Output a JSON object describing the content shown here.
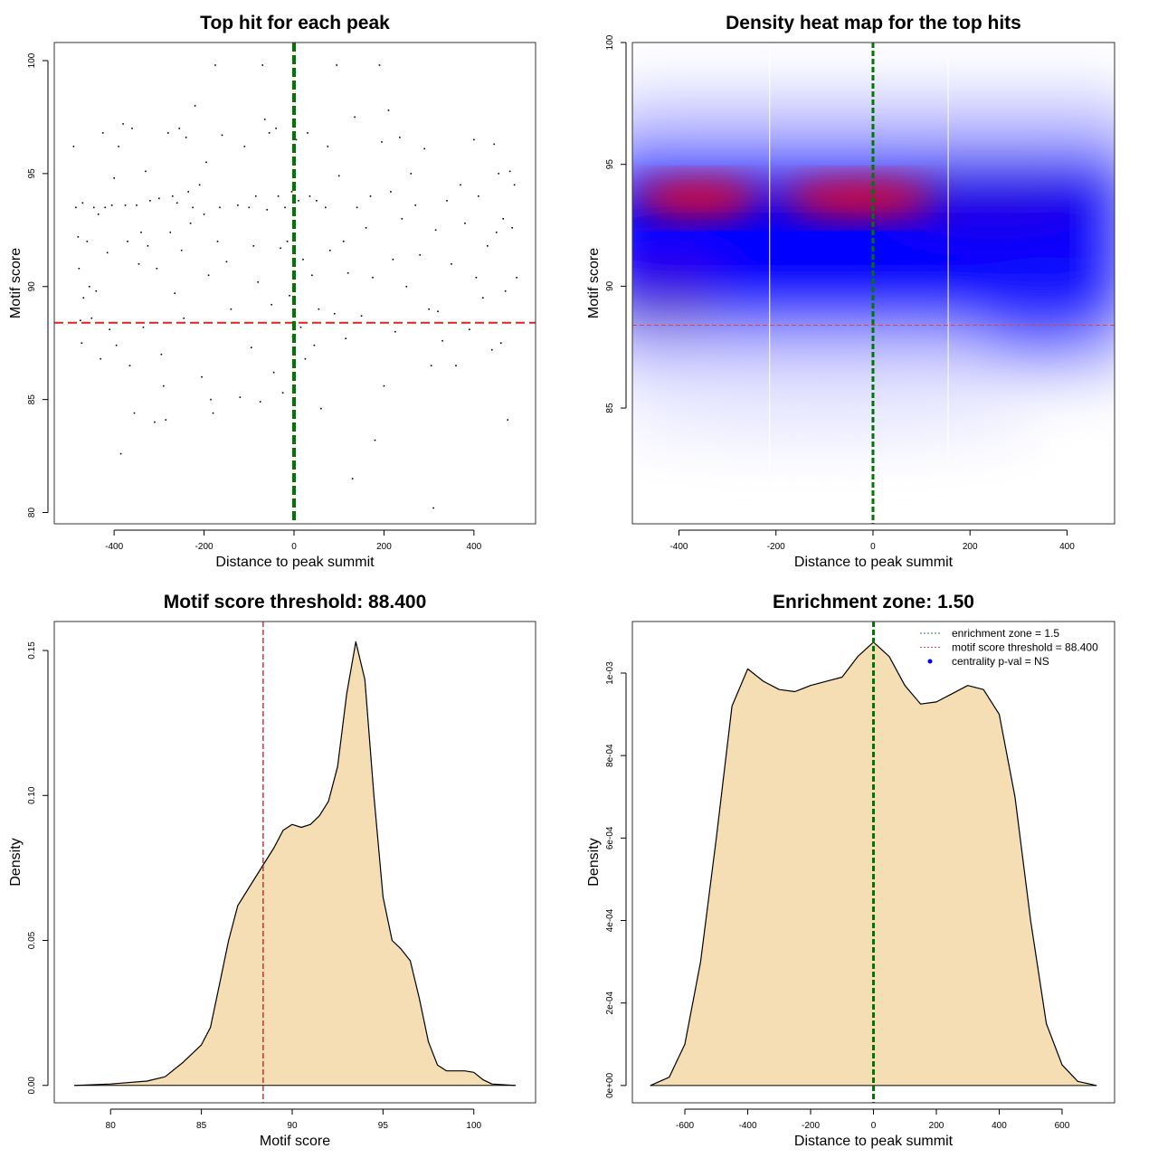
{
  "chart_data": [
    {
      "type": "scatter",
      "title": "Top hit for each peak",
      "xlabel": "Distance to peak summit",
      "ylabel": "Motif score",
      "xlim": [
        -533,
        537
      ],
      "ylim": [
        79.5,
        100.8
      ],
      "xticks": [
        -400,
        -200,
        0,
        200,
        400
      ],
      "yticks": [
        80,
        85,
        90,
        95,
        100
      ],
      "hline": {
        "value": 88.4,
        "color": "#dd2222"
      },
      "vline": {
        "value": 0,
        "color": "#007700"
      },
      "points": [
        [
          -490,
          96.2
        ],
        [
          -485,
          93.5
        ],
        [
          -480,
          92.2
        ],
        [
          -478,
          90.8
        ],
        [
          -475,
          88.5
        ],
        [
          -472,
          87.5
        ],
        [
          -470,
          93.7
        ],
        [
          -468,
          89.5
        ],
        [
          -465,
          88.4
        ],
        [
          -460,
          92
        ],
        [
          -455,
          90
        ],
        [
          -450,
          88.6
        ],
        [
          -445,
          93.5
        ],
        [
          -440,
          89.8
        ],
        [
          -435,
          93.2
        ],
        [
          -430,
          86.8
        ],
        [
          -425,
          96.8
        ],
        [
          -420,
          93.5
        ],
        [
          -415,
          91.5
        ],
        [
          -410,
          88.1
        ],
        [
          -405,
          93.6
        ],
        [
          -400,
          94.8
        ],
        [
          -395,
          87.4
        ],
        [
          -390,
          96.2
        ],
        [
          -385,
          82.6
        ],
        [
          -380,
          97.2
        ],
        [
          -375,
          93.6
        ],
        [
          -370,
          92
        ],
        [
          -365,
          86.5
        ],
        [
          -360,
          97
        ],
        [
          -355,
          84.4
        ],
        [
          -350,
          93.6
        ],
        [
          -345,
          91
        ],
        [
          -340,
          92.4
        ],
        [
          -335,
          88.2
        ],
        [
          -330,
          95.1
        ],
        [
          -325,
          91.8
        ],
        [
          -320,
          93.8
        ],
        [
          -310,
          84
        ],
        [
          -305,
          90.8
        ],
        [
          -300,
          93.9
        ],
        [
          -295,
          87
        ],
        [
          -290,
          85.6
        ],
        [
          -285,
          84.1
        ],
        [
          -280,
          96.8
        ],
        [
          -275,
          92.4
        ],
        [
          -270,
          94
        ],
        [
          -265,
          89.7
        ],
        [
          -260,
          93.7
        ],
        [
          -255,
          97
        ],
        [
          -250,
          91.6
        ],
        [
          -245,
          88.6
        ],
        [
          -240,
          96.6
        ],
        [
          -235,
          94.2
        ],
        [
          -230,
          92.8
        ],
        [
          -225,
          93.5
        ],
        [
          -220,
          98
        ],
        [
          -215,
          88.4
        ],
        [
          -210,
          94.5
        ],
        [
          -205,
          86
        ],
        [
          -200,
          93.2
        ],
        [
          -195,
          95.5
        ],
        [
          -190,
          90.5
        ],
        [
          -185,
          85
        ],
        [
          -180,
          84.4
        ],
        [
          -175,
          99.8
        ],
        [
          -170,
          92
        ],
        [
          -165,
          93.5
        ],
        [
          -160,
          96.7
        ],
        [
          -150,
          91.1
        ],
        [
          -140,
          89
        ],
        [
          -130,
          88.4
        ],
        [
          -125,
          93.6
        ],
        [
          -120,
          85.1
        ],
        [
          -110,
          96.2
        ],
        [
          -100,
          93.5
        ],
        [
          -95,
          87.3
        ],
        [
          -90,
          91.8
        ],
        [
          -85,
          94
        ],
        [
          -80,
          90.2
        ],
        [
          -75,
          84.9
        ],
        [
          -70,
          99.8
        ],
        [
          -65,
          97.4
        ],
        [
          -60,
          93.4
        ],
        [
          -55,
          96.8
        ],
        [
          -50,
          89.2
        ],
        [
          -45,
          86.2
        ],
        [
          -40,
          97
        ],
        [
          -35,
          94
        ],
        [
          -30,
          91.7
        ],
        [
          -25,
          85.3
        ],
        [
          -20,
          93.5
        ],
        [
          -15,
          92
        ],
        [
          -10,
          89.6
        ],
        [
          -5,
          94.2
        ],
        [
          -3,
          87.8
        ],
        [
          5,
          96.5
        ],
        [
          10,
          93.8
        ],
        [
          15,
          88.2
        ],
        [
          20,
          91.2
        ],
        [
          25,
          86.8
        ],
        [
          30,
          96.8
        ],
        [
          35,
          94
        ],
        [
          40,
          90.5
        ],
        [
          45,
          87.4
        ],
        [
          50,
          93.8
        ],
        [
          55,
          89
        ],
        [
          60,
          84.6
        ],
        [
          70,
          93.5
        ],
        [
          75,
          96.2
        ],
        [
          80,
          91.6
        ],
        [
          90,
          88.8
        ],
        [
          95,
          99.8
        ],
        [
          100,
          94.9
        ],
        [
          110,
          92
        ],
        [
          115,
          87.7
        ],
        [
          120,
          90.6
        ],
        [
          130,
          81.5
        ],
        [
          135,
          97.5
        ],
        [
          140,
          93.5
        ],
        [
          150,
          88.7
        ],
        [
          160,
          92.6
        ],
        [
          170,
          94
        ],
        [
          175,
          90.4
        ],
        [
          180,
          83.2
        ],
        [
          190,
          99.8
        ],
        [
          195,
          96.4
        ],
        [
          200,
          85.6
        ],
        [
          210,
          97.8
        ],
        [
          215,
          94.2
        ],
        [
          220,
          91.2
        ],
        [
          225,
          88
        ],
        [
          235,
          96.6
        ],
        [
          240,
          93
        ],
        [
          250,
          90
        ],
        [
          260,
          95
        ],
        [
          265,
          88.4
        ],
        [
          270,
          93.6
        ],
        [
          280,
          91.4
        ],
        [
          290,
          96.1
        ],
        [
          300,
          89
        ],
        [
          305,
          86.5
        ],
        [
          310,
          80.2
        ],
        [
          315,
          92.5
        ],
        [
          320,
          88.9
        ],
        [
          330,
          87.6
        ],
        [
          340,
          93.8
        ],
        [
          350,
          91
        ],
        [
          360,
          86.5
        ],
        [
          370,
          94.5
        ],
        [
          380,
          92.8
        ],
        [
          390,
          88.1
        ],
        [
          400,
          96.5
        ],
        [
          405,
          90.4
        ],
        [
          410,
          94
        ],
        [
          420,
          89.5
        ],
        [
          430,
          91.8
        ],
        [
          440,
          87.2
        ],
        [
          445,
          96.3
        ],
        [
          450,
          92.4
        ],
        [
          455,
          95
        ],
        [
          460,
          87.5
        ],
        [
          465,
          93
        ],
        [
          470,
          89.8
        ],
        [
          475,
          84.1
        ],
        [
          480,
          95.1
        ],
        [
          485,
          92.6
        ],
        [
          490,
          94.5
        ],
        [
          495,
          90.4
        ]
      ]
    },
    {
      "type": "heatmap",
      "title": "Density heat map for the top hits",
      "xlabel": "Distance to peak summit",
      "ylabel": "Motif score",
      "xlim": [
        -496,
        498
      ],
      "ylim": [
        80.25,
        100
      ],
      "xticks": [
        -400,
        -200,
        0,
        200,
        400
      ],
      "yticks": [
        85,
        90,
        95,
        100
      ],
      "hline": {
        "value": 88.4,
        "color": "#dd4444"
      },
      "vline": {
        "value": 0,
        "color": "#007700"
      },
      "white_lines": [
        -213,
        155
      ],
      "hotspots": [
        {
          "x": -360,
          "y": 93.6,
          "level": "high"
        },
        {
          "x": -30,
          "y": 93.6,
          "level": "high"
        }
      ],
      "colors": {
        "low": "#ffffff",
        "mid": "#0000ff",
        "high": "#ff0000"
      }
    },
    {
      "type": "area",
      "title": "Motif score threshold: 88.400",
      "xlabel": "Motif score",
      "ylabel": "Density",
      "xlim": [
        76.9,
        103.4
      ],
      "ylim": [
        -0.006,
        0.16
      ],
      "xticks": [
        80,
        85,
        90,
        95,
        100
      ],
      "yticks": [
        0,
        0.05,
        0.1,
        0.15
      ],
      "ytick_labels": [
        "0.00",
        "0.05",
        "0.10",
        "0.15"
      ],
      "vline": {
        "value": 88.4,
        "color": "#b22222"
      },
      "fill": "#f5deb3",
      "x": [
        78,
        80,
        82,
        83,
        84,
        85,
        85.5,
        86,
        86.5,
        87,
        88,
        89,
        89.5,
        90,
        90.5,
        91,
        91.5,
        92,
        92.5,
        93,
        93.5,
        94,
        94.5,
        95,
        95.5,
        96,
        96.5,
        97,
        97.5,
        98,
        98.5,
        99,
        99.5,
        100,
        100.5,
        101,
        102.3
      ],
      "y": [
        0,
        0.0005,
        0.0015,
        0.003,
        0.008,
        0.014,
        0.02,
        0.035,
        0.05,
        0.062,
        0.072,
        0.082,
        0.088,
        0.09,
        0.089,
        0.09,
        0.093,
        0.098,
        0.11,
        0.135,
        0.153,
        0.14,
        0.1,
        0.065,
        0.05,
        0.047,
        0.043,
        0.03,
        0.015,
        0.007,
        0.005,
        0.005,
        0.005,
        0.0045,
        0.002,
        0.0005,
        0
      ]
    },
    {
      "type": "area",
      "title": "Enrichment zone: 1.50",
      "xlabel": "Distance to peak summit",
      "ylabel": "Density",
      "xlim": [
        -767,
        767
      ],
      "ylim": [
        -4.2e-05,
        0.001125
      ],
      "xticks": [
        -600,
        -400,
        -200,
        0,
        200,
        400,
        600
      ],
      "yticks": [
        0,
        0.0002,
        0.0004,
        0.0006,
        0.0008,
        0.001
      ],
      "ytick_labels": [
        "0e+00",
        "2e-04",
        "4e-04",
        "6e-04",
        "8e-04",
        "1e-03"
      ],
      "vline": {
        "value": 0,
        "color": "#007700"
      },
      "fill": "#f5deb3",
      "x": [
        -710,
        -650,
        -600,
        -550,
        -500,
        -450,
        -400,
        -350,
        -300,
        -250,
        -200,
        -150,
        -100,
        -50,
        0,
        50,
        100,
        150,
        200,
        250,
        300,
        350,
        400,
        450,
        500,
        550,
        600,
        650,
        710
      ],
      "y": [
        0,
        2e-05,
        0.0001,
        0.0003,
        0.0006,
        0.00092,
        0.00101,
        0.00098,
        0.00096,
        0.000955,
        0.00097,
        0.00098,
        0.00099,
        0.00104,
        0.001075,
        0.00104,
        0.00097,
        0.000925,
        0.00093,
        0.00095,
        0.00097,
        0.00096,
        0.0009,
        0.0007,
        0.0004,
        0.00015,
        5e-05,
        1e-05,
        0
      ],
      "legend": {
        "position": "top-right",
        "entries": [
          {
            "label": "enrichment zone = 1.5",
            "color": "#228822",
            "style": "dotted"
          },
          {
            "label": "motif score threshold = 88.400",
            "color": "#ee4444",
            "style": "dotted"
          },
          {
            "label": "centrality p-val = NS",
            "color": "#0000ff",
            "style": "point"
          }
        ]
      }
    }
  ]
}
